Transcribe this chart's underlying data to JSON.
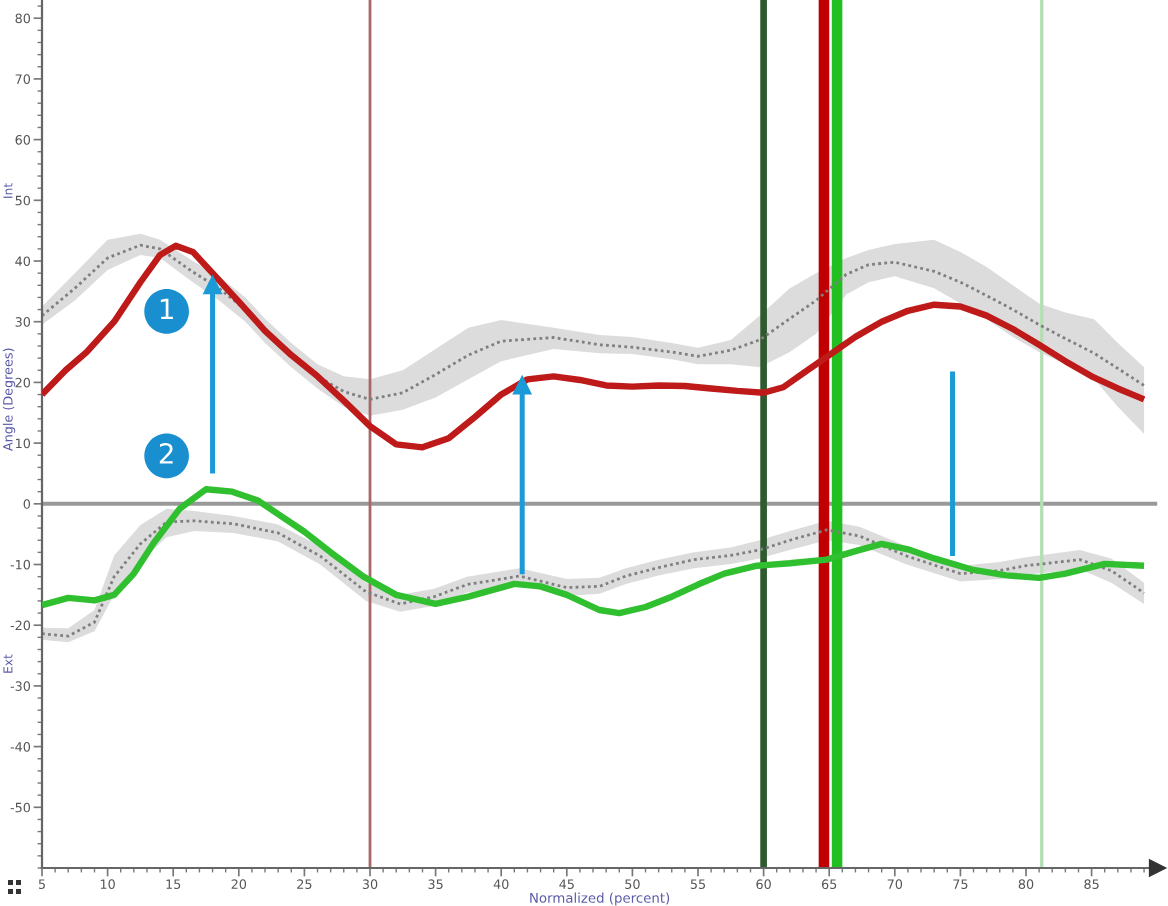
{
  "chart_data": {
    "type": "line",
    "xlabel": "Normalized (percent)",
    "ylabel": "Angle (Degrees)",
    "xlim": [
      5,
      90
    ],
    "ylim": [
      -60,
      83
    ],
    "xticks": [
      5,
      10,
      15,
      20,
      25,
      30,
      35,
      40,
      45,
      50,
      55,
      60,
      65,
      70,
      75,
      80,
      85
    ],
    "yticks": [
      -50,
      -40,
      -30,
      -20,
      -10,
      0,
      10,
      20,
      30,
      40,
      50,
      60,
      70,
      80
    ],
    "grid": false,
    "annotations": [
      "Int",
      "Ext",
      {
        "text": "1",
        "x": 14.5,
        "y": 31.7
      },
      {
        "text": "2",
        "x": 14.5,
        "y": 7.9
      }
    ],
    "ref_lines": [
      {
        "axis": "y",
        "value": 0,
        "color": "#999999"
      },
      {
        "axis": "x",
        "value": 30,
        "color": "#a86868"
      },
      {
        "axis": "x",
        "value": 60,
        "color": "#2f5a2f"
      },
      {
        "axis": "x",
        "value": 64.6,
        "color": "#c00000"
      },
      {
        "axis": "x",
        "value": 65.6,
        "color": "#22bf22"
      },
      {
        "axis": "x",
        "value": 81.2,
        "color": "#b5deb5"
      }
    ],
    "series": [
      {
        "color": "#7f7f7f",
        "line_style": "dotted",
        "x": [
          5,
          7.5,
          10,
          12.5,
          14,
          16.5,
          18.5,
          20.5,
          22,
          24,
          26,
          28,
          30,
          32.5,
          35,
          37.5,
          40,
          44,
          47.5,
          50,
          53,
          55,
          57.5,
          59.7,
          62,
          64,
          66.3,
          68,
          70,
          73,
          75,
          77,
          79,
          81,
          83,
          85.2,
          87,
          89
        ],
        "values": [
          31,
          35.5,
          40.5,
          42.6,
          42,
          38.2,
          35.5,
          32,
          28.5,
          24.5,
          21,
          18.5,
          17.2,
          18.3,
          21.3,
          24.5,
          26.8,
          27.4,
          26.2,
          25.8,
          25,
          24.3,
          25.3,
          27,
          30.5,
          33.5,
          37.8,
          39.4,
          39.8,
          38.3,
          36.5,
          34.3,
          32,
          29.5,
          27.2,
          24.8,
          22.3,
          19.5
        ],
        "lower": [
          29.5,
          33.5,
          38.5,
          41,
          40.5,
          36.5,
          33.5,
          30,
          26.5,
          22.5,
          19,
          16,
          14.5,
          15.5,
          17.5,
          20.5,
          23.5,
          25.5,
          24.8,
          24.7,
          23.8,
          23,
          23,
          22.5,
          25,
          28,
          34.5,
          36.5,
          37.5,
          35.5,
          33,
          30.4,
          27.5,
          25,
          23,
          20.5,
          16,
          11.5
        ],
        "upper": [
          32.5,
          38,
          43.5,
          44.5,
          43.5,
          40,
          37.5,
          34,
          30.5,
          26.5,
          23,
          21,
          20.5,
          22,
          25.5,
          29,
          30.3,
          29,
          27.8,
          27.5,
          26.5,
          25.7,
          27,
          31,
          35.5,
          38,
          40.5,
          41.8,
          42.8,
          43.5,
          41.5,
          39,
          36,
          33,
          31.5,
          30.4,
          26.5,
          22.5
        ]
      },
      {
        "color": "#7f7f7f",
        "line_style": "dotted",
        "x": [
          5,
          7,
          9,
          10.5,
          12.5,
          14.5,
          16.6,
          19.6,
          23,
          26.2,
          29.7,
          32.3,
          34.9,
          37.4,
          41.4,
          45,
          47.5,
          49.5,
          52,
          54.7,
          57.5,
          59.7,
          62,
          64.8,
          67.3,
          70.9,
          75,
          78,
          80,
          84.1,
          86.5,
          89
        ],
        "values": [
          -21.4,
          -21.8,
          -19.5,
          -12,
          -6.6,
          -3,
          -2.8,
          -3.3,
          -4.8,
          -8.6,
          -14.5,
          -16.5,
          -15.3,
          -13.3,
          -11.9,
          -13.8,
          -13.6,
          -11.9,
          -10.5,
          -9.2,
          -8.5,
          -7.6,
          -6,
          -4.3,
          -5.3,
          -8.6,
          -11.5,
          -11,
          -10.2,
          -9.2,
          -11,
          -14.7
        ],
        "lower": [
          -22.4,
          -22.8,
          -21,
          -15,
          -9.5,
          -5.5,
          -4.5,
          -4.8,
          -6.2,
          -10,
          -16,
          -17.8,
          -16.8,
          -14.6,
          -13.4,
          -15.2,
          -14.8,
          -13.2,
          -11.8,
          -10.6,
          -9.9,
          -9,
          -7.6,
          -6,
          -6.8,
          -10,
          -12.8,
          -12.4,
          -11.7,
          -10.8,
          -13,
          -16.5
        ],
        "upper": [
          -20.4,
          -20.5,
          -17.5,
          -8.5,
          -3.5,
          -0.8,
          -1.2,
          -2,
          -3.4,
          -7,
          -13,
          -15,
          -14,
          -12,
          -10.6,
          -12.4,
          -12.2,
          -10.6,
          -9.2,
          -8,
          -7.2,
          -6,
          -4.5,
          -2.8,
          -3.8,
          -7,
          -10.2,
          -9.6,
          -8.8,
          -7.6,
          -9,
          -13
        ]
      },
      {
        "color": "#be1a1a",
        "line_style": "solid",
        "x": [
          5,
          6.8,
          8.4,
          10.5,
          12.5,
          14,
          15.2,
          16.5,
          18,
          20,
          22,
          24,
          26,
          28,
          30,
          32,
          34,
          36,
          38,
          40,
          42,
          44,
          46,
          48,
          50,
          52,
          54,
          56,
          58,
          60,
          61.5,
          63,
          65,
          67,
          69,
          71,
          73,
          75,
          77,
          79,
          81,
          83,
          85,
          87,
          89
        ],
        "values": [
          18,
          22,
          25,
          30,
          36.5,
          41,
          42.5,
          41.5,
          38,
          33.3,
          28.5,
          24.5,
          21,
          17,
          12.8,
          9.8,
          9.3,
          10.8,
          14.3,
          18,
          20.5,
          21,
          20.4,
          19.5,
          19.3,
          19.5,
          19.4,
          19,
          18.6,
          18.3,
          19.2,
          21.5,
          24.5,
          27.5,
          30,
          31.8,
          32.8,
          32.5,
          31,
          28.8,
          26.2,
          23.5,
          21,
          19,
          17.2
        ]
      },
      {
        "color": "#2fbf2f",
        "line_style": "solid",
        "x": [
          5,
          7,
          9,
          10.5,
          12,
          13.5,
          15.5,
          17.5,
          19.5,
          21.5,
          23,
          25,
          27,
          29.5,
          32,
          35,
          37.5,
          41,
          43,
          45,
          47.5,
          49,
          51,
          53,
          55,
          57,
          59.5,
          62,
          64.8,
          67,
          69,
          71,
          73,
          76,
          78.5,
          81,
          83,
          86,
          89
        ],
        "values": [
          -16.7,
          -15.5,
          -15.9,
          -15,
          -11.5,
          -6.5,
          -0.8,
          2.4,
          2,
          0.5,
          -1.7,
          -4.6,
          -8,
          -12,
          -15,
          -16.5,
          -15.3,
          -13.2,
          -13.6,
          -15,
          -17.5,
          -18,
          -17,
          -15.3,
          -13.3,
          -11.5,
          -10.2,
          -9.8,
          -9.2,
          -7.8,
          -6.6,
          -7.5,
          -9,
          -10.9,
          -11.8,
          -12.2,
          -11.5,
          -9.9,
          -10.2
        ]
      },
      {
        "color": "#1a9ad6",
        "line_style": "solid",
        "marker": "triangle",
        "x": [
          18,
          18
        ],
        "values": [
          5,
          36
        ]
      },
      {
        "color": "#1a9ad6",
        "line_style": "solid",
        "marker": "triangle",
        "x": [
          41.6,
          41.6
        ],
        "values": [
          -11.6,
          19.5
        ]
      },
      {
        "color": "#1a9ad6",
        "line_style": "solid",
        "x": [
          74.4,
          74.4
        ],
        "values": [
          -8.6,
          21.8
        ]
      }
    ]
  }
}
